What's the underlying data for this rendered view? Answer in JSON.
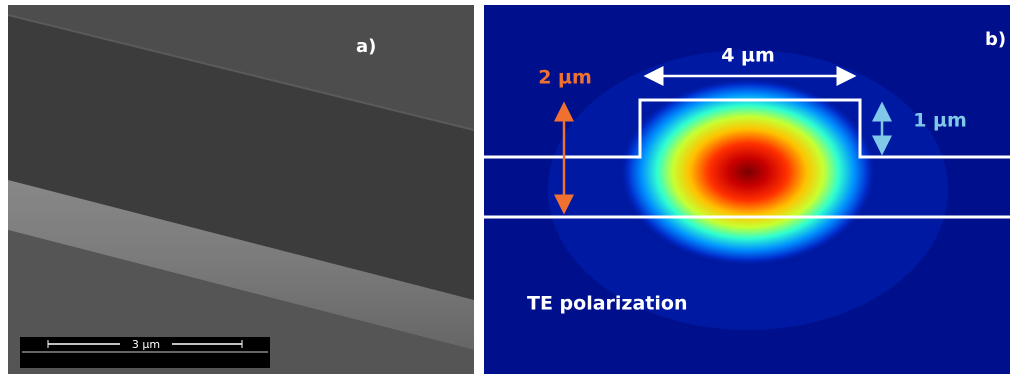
{
  "panel_a": {
    "label": "a)",
    "scale_bar": "3 µm"
  },
  "panel_b": {
    "label": "b)",
    "width_label": "4 µm",
    "depth_label": "2 µm",
    "height_label": "1 µm",
    "polarization": "TE polarization"
  }
}
